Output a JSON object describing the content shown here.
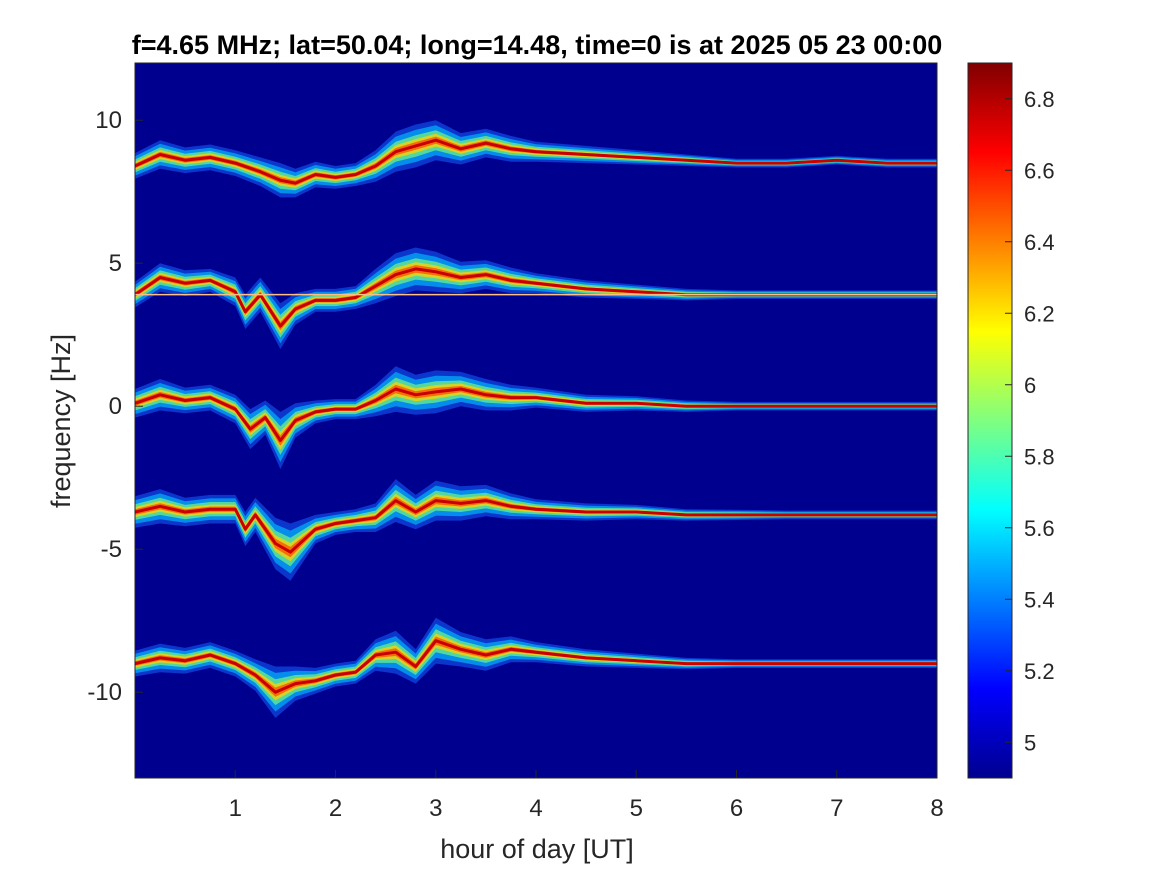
{
  "chart_data": {
    "type": "heatmap",
    "title": "f=4.65 MHz;  lat=50.04; long=14.48, time=0 is at 2025 05 23 00:00",
    "xlabel": "hour of day [UT]",
    "ylabel": "frequency [Hz]",
    "xlim": [
      0,
      8
    ],
    "ylim": [
      -13,
      12
    ],
    "x_ticks": [
      1,
      2,
      3,
      4,
      5,
      6,
      7,
      8
    ],
    "x_tick_labels": [
      "1",
      "2",
      "3",
      "4",
      "5",
      "6",
      "7",
      "8"
    ],
    "y_ticks": [
      10,
      5,
      0,
      -5,
      -10
    ],
    "y_tick_labels": [
      "10",
      "5",
      "0",
      "-5",
      "-10"
    ],
    "grid": false,
    "colormap": "jet",
    "background_color": "#00008f",
    "colorbar": {
      "range": [
        4.9,
        6.9
      ],
      "ticks": [
        6.8,
        6.6,
        6.4,
        6.2,
        6,
        5.8,
        5.6,
        5.4,
        5.2,
        5
      ],
      "tick_labels": [
        "6.8",
        "6.6",
        "6.4",
        "6.2",
        "6",
        "5.8",
        "5.6",
        "5.4",
        "5.2",
        "5"
      ]
    },
    "series": [
      {
        "x": [
          0.0,
          0.25,
          0.5,
          0.75,
          1.0,
          1.25,
          1.45,
          1.6,
          1.8,
          2.0,
          2.2,
          2.4,
          2.6,
          2.8,
          3.0,
          3.25,
          3.5,
          3.75,
          4.0,
          4.5,
          5.0,
          5.5,
          6.0,
          6.5,
          7.0,
          7.5,
          8.0
        ],
        "y": [
          8.4,
          8.8,
          8.6,
          8.7,
          8.5,
          8.2,
          7.9,
          7.8,
          8.1,
          8.0,
          8.1,
          8.4,
          8.9,
          9.1,
          9.3,
          9.0,
          9.2,
          9.0,
          8.9,
          8.8,
          8.7,
          8.6,
          8.5,
          8.5,
          8.6,
          8.5,
          8.5
        ],
        "spread": [
          0.45,
          0.5,
          0.45,
          0.45,
          0.45,
          0.5,
          0.6,
          0.5,
          0.45,
          0.4,
          0.4,
          0.55,
          0.7,
          0.75,
          0.7,
          0.55,
          0.5,
          0.45,
          0.35,
          0.3,
          0.25,
          0.2,
          0.15,
          0.15,
          0.15,
          0.15,
          0.15
        ]
      },
      {
        "x": [
          0.0,
          0.25,
          0.5,
          0.75,
          1.0,
          1.1,
          1.25,
          1.45,
          1.6,
          1.8,
          2.0,
          2.2,
          2.4,
          2.6,
          2.8,
          3.0,
          3.25,
          3.5,
          3.75,
          4.0,
          4.5,
          5.0,
          5.5,
          6.0,
          6.5,
          7.0,
          7.5,
          8.0
        ],
        "y": [
          3.9,
          4.5,
          4.3,
          4.4,
          4.0,
          3.3,
          3.9,
          2.8,
          3.4,
          3.7,
          3.7,
          3.8,
          4.2,
          4.6,
          4.8,
          4.7,
          4.5,
          4.6,
          4.4,
          4.3,
          4.1,
          4.0,
          3.9,
          3.9,
          3.9,
          3.9,
          3.9,
          3.9
        ],
        "spread": [
          0.45,
          0.5,
          0.45,
          0.4,
          0.5,
          0.6,
          0.6,
          0.8,
          0.55,
          0.4,
          0.4,
          0.4,
          0.6,
          0.75,
          0.75,
          0.7,
          0.55,
          0.5,
          0.45,
          0.35,
          0.3,
          0.25,
          0.2,
          0.15,
          0.15,
          0.15,
          0.15,
          0.15
        ]
      },
      {
        "x": [
          0.0,
          0.25,
          0.5,
          0.75,
          1.0,
          1.15,
          1.3,
          1.45,
          1.6,
          1.8,
          2.0,
          2.2,
          2.4,
          2.6,
          2.8,
          3.0,
          3.25,
          3.5,
          3.75,
          4.0,
          4.5,
          5.0,
          5.5,
          6.0,
          6.5,
          7.0,
          7.5,
          8.0
        ],
        "y": [
          0.1,
          0.4,
          0.2,
          0.3,
          -0.1,
          -0.8,
          -0.4,
          -1.2,
          -0.5,
          -0.2,
          -0.1,
          -0.1,
          0.2,
          0.6,
          0.4,
          0.5,
          0.6,
          0.4,
          0.3,
          0.3,
          0.1,
          0.1,
          0.0,
          0.0,
          0.0,
          0.0,
          0.0,
          0.0
        ],
        "spread": [
          0.5,
          0.55,
          0.45,
          0.45,
          0.5,
          0.7,
          0.6,
          1.0,
          0.6,
          0.4,
          0.35,
          0.35,
          0.55,
          0.8,
          0.7,
          0.75,
          0.6,
          0.55,
          0.45,
          0.35,
          0.3,
          0.25,
          0.2,
          0.15,
          0.15,
          0.15,
          0.15,
          0.15
        ]
      },
      {
        "x": [
          0.0,
          0.25,
          0.5,
          0.75,
          1.0,
          1.1,
          1.2,
          1.4,
          1.55,
          1.8,
          2.0,
          2.2,
          2.4,
          2.6,
          2.8,
          3.0,
          3.25,
          3.5,
          3.75,
          4.0,
          4.5,
          5.0,
          5.5,
          6.0,
          6.5,
          7.0,
          7.5,
          8.0
        ],
        "y": [
          -3.7,
          -3.5,
          -3.7,
          -3.6,
          -3.6,
          -4.3,
          -3.8,
          -4.8,
          -5.1,
          -4.3,
          -4.1,
          -4.0,
          -3.9,
          -3.3,
          -3.7,
          -3.3,
          -3.4,
          -3.3,
          -3.5,
          -3.6,
          -3.7,
          -3.7,
          -3.8,
          -3.8,
          -3.8,
          -3.8,
          -3.8,
          -3.8
        ],
        "spread": [
          0.55,
          0.6,
          0.5,
          0.5,
          0.5,
          0.6,
          0.6,
          0.9,
          1.0,
          0.5,
          0.4,
          0.4,
          0.5,
          0.75,
          0.6,
          0.7,
          0.6,
          0.55,
          0.45,
          0.35,
          0.3,
          0.25,
          0.2,
          0.18,
          0.15,
          0.15,
          0.15,
          0.15
        ]
      },
      {
        "x": [
          0.0,
          0.25,
          0.5,
          0.75,
          1.0,
          1.2,
          1.4,
          1.6,
          1.8,
          2.0,
          2.2,
          2.4,
          2.6,
          2.8,
          3.0,
          3.25,
          3.5,
          3.75,
          4.0,
          4.5,
          5.0,
          5.5,
          6.0,
          6.5,
          7.0,
          7.5,
          8.0
        ],
        "y": [
          -9.0,
          -8.8,
          -8.9,
          -8.7,
          -9.0,
          -9.4,
          -10.0,
          -9.7,
          -9.6,
          -9.4,
          -9.3,
          -8.7,
          -8.6,
          -9.1,
          -8.2,
          -8.5,
          -8.7,
          -8.5,
          -8.6,
          -8.8,
          -8.9,
          -9.0,
          -9.0,
          -9.0,
          -9.0,
          -9.0,
          -9.0
        ],
        "spread": [
          0.45,
          0.5,
          0.45,
          0.45,
          0.45,
          0.55,
          0.9,
          0.6,
          0.45,
          0.4,
          0.4,
          0.55,
          0.75,
          0.6,
          0.8,
          0.6,
          0.55,
          0.45,
          0.35,
          0.3,
          0.25,
          0.2,
          0.15,
          0.15,
          0.15,
          0.15,
          0.15
        ]
      }
    ],
    "constant_lines": [
      {
        "y": 3.9,
        "x_range": [
          0.0,
          8.0
        ]
      }
    ]
  }
}
